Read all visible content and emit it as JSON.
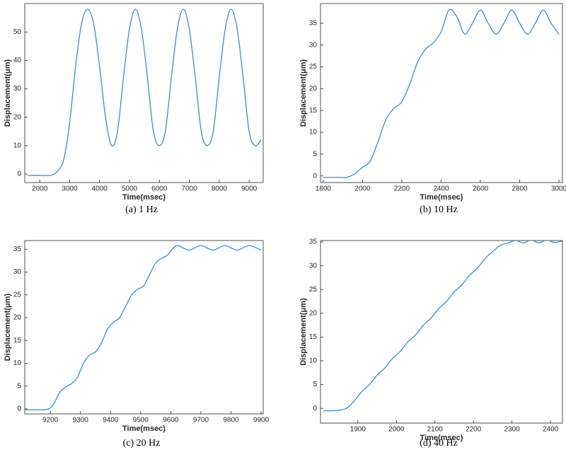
{
  "chart_data": [
    {
      "type": "line",
      "caption": "(a) 1 Hz",
      "xlabel": "Time(msec)",
      "ylabel": "Displacement(μm)",
      "color": "#3d8fc6",
      "xlim": [
        1500,
        9470
      ],
      "ylim": [
        -3,
        60
      ],
      "xticks": [
        2000,
        3000,
        4000,
        5000,
        6000,
        7000,
        8000,
        9000
      ],
      "yticks": [
        0,
        10,
        20,
        30,
        40,
        50
      ],
      "x": [
        1600,
        1800,
        2000,
        2200,
        2400,
        2600,
        2800,
        3000,
        3200,
        3400,
        3600,
        3800,
        4000,
        4200,
        4400,
        4600,
        4800,
        5000,
        5200,
        5400,
        5600,
        5800,
        6000,
        6200,
        6400,
        6600,
        6800,
        7000,
        7200,
        7400,
        7600,
        7800,
        8000,
        8200,
        8400,
        8600,
        8800,
        9000,
        9200,
        9400
      ],
      "values": [
        -0.5,
        -0.5,
        -0.5,
        -0.5,
        -0.4,
        1,
        5,
        18,
        38,
        53,
        58,
        53,
        38,
        20,
        10,
        15,
        34,
        51,
        58,
        51,
        34,
        15,
        10,
        15,
        34,
        51,
        58,
        51,
        34,
        15,
        10,
        15,
        34,
        51,
        58,
        51,
        34,
        15,
        10,
        12
      ]
    },
    {
      "type": "line",
      "caption": "(b) 10 Hz",
      "xlabel": "Time(msec)",
      "ylabel": "Displacement(μm)",
      "color": "#3d8fc6",
      "xlim": [
        1786,
        3018
      ],
      "ylim": [
        -1.5,
        39.5
      ],
      "xticks": [
        1800,
        2000,
        2200,
        2400,
        2600,
        2800,
        3000
      ],
      "yticks": [
        0,
        5,
        10,
        15,
        20,
        25,
        30,
        35
      ],
      "x": [
        1800,
        1840,
        1880,
        1920,
        1960,
        2000,
        2040,
        2080,
        2120,
        2160,
        2200,
        2240,
        2280,
        2320,
        2360,
        2400,
        2440,
        2480,
        2520,
        2560,
        2600,
        2640,
        2680,
        2720,
        2760,
        2800,
        2840,
        2880,
        2920,
        2960,
        3000
      ],
      "values": [
        -0.3,
        -0.3,
        -0.3,
        -0.3,
        0.5,
        2,
        3.5,
        8,
        13,
        15.5,
        17,
        21,
        26,
        29,
        30.5,
        33,
        38,
        36.5,
        32.5,
        35,
        38,
        35,
        32.5,
        35,
        38,
        35,
        32.5,
        35,
        38,
        35,
        32.5
      ]
    },
    {
      "type": "line",
      "caption": "(c) 20 Hz",
      "xlabel": "Time(msec)",
      "ylabel": "Displacement(μm)",
      "color": "#3d8fc6",
      "xlim": [
        9115,
        9907
      ],
      "ylim": [
        -1.1,
        36.9
      ],
      "xticks": [
        9200,
        9300,
        9400,
        9500,
        9600,
        9700,
        9800,
        9900
      ],
      "yticks": [
        0,
        5,
        10,
        15,
        20,
        25,
        30,
        35
      ],
      "x": [
        9115,
        9150,
        9190,
        9210,
        9230,
        9250,
        9270,
        9290,
        9310,
        9330,
        9350,
        9370,
        9390,
        9410,
        9430,
        9450,
        9470,
        9490,
        9510,
        9530,
        9550,
        9570,
        9590,
        9620,
        9660,
        9700,
        9740,
        9780,
        9820,
        9860,
        9900
      ],
      "values": [
        -0.2,
        -0.2,
        -0.1,
        1,
        3.5,
        4.8,
        5.5,
        7,
        10,
        11.8,
        12.5,
        14.5,
        17.5,
        19,
        20,
        22.5,
        25,
        26.2,
        27,
        29.5,
        32,
        33,
        33.8,
        35.8,
        34.8,
        35.8,
        34.8,
        35.8,
        34.8,
        35.8,
        34.8
      ]
    },
    {
      "type": "line",
      "caption": "(d) 40 Hz",
      "xlabel": "Time(msec)",
      "ylabel": "Displacement(μm)",
      "color": "#3d8fc6",
      "xlim": [
        1803,
        2431
      ],
      "ylim": [
        -3.1,
        35.3
      ],
      "xticks": [
        1900,
        2000,
        2100,
        2200,
        2300,
        2400
      ],
      "yticks": [
        0,
        5,
        10,
        15,
        20,
        25,
        30,
        35
      ],
      "x": [
        1810,
        1830,
        1850,
        1870,
        1890,
        1910,
        1930,
        1950,
        1970,
        1990,
        2010,
        2030,
        2050,
        2070,
        2090,
        2110,
        2130,
        2150,
        2170,
        2190,
        2210,
        2230,
        2250,
        2270,
        2290,
        2310,
        2330,
        2350,
        2370,
        2390,
        2410,
        2430
      ],
      "values": [
        -0.5,
        -0.5,
        -0.4,
        0,
        1.5,
        3.5,
        5,
        7,
        8.5,
        10.5,
        12,
        14,
        15.5,
        17.5,
        19,
        21,
        22.5,
        24.5,
        26,
        28,
        29.5,
        31.5,
        33,
        34.3,
        34.8,
        35.3,
        34.8,
        35.4,
        34.8,
        35.4,
        34.9,
        35.2
      ]
    }
  ]
}
